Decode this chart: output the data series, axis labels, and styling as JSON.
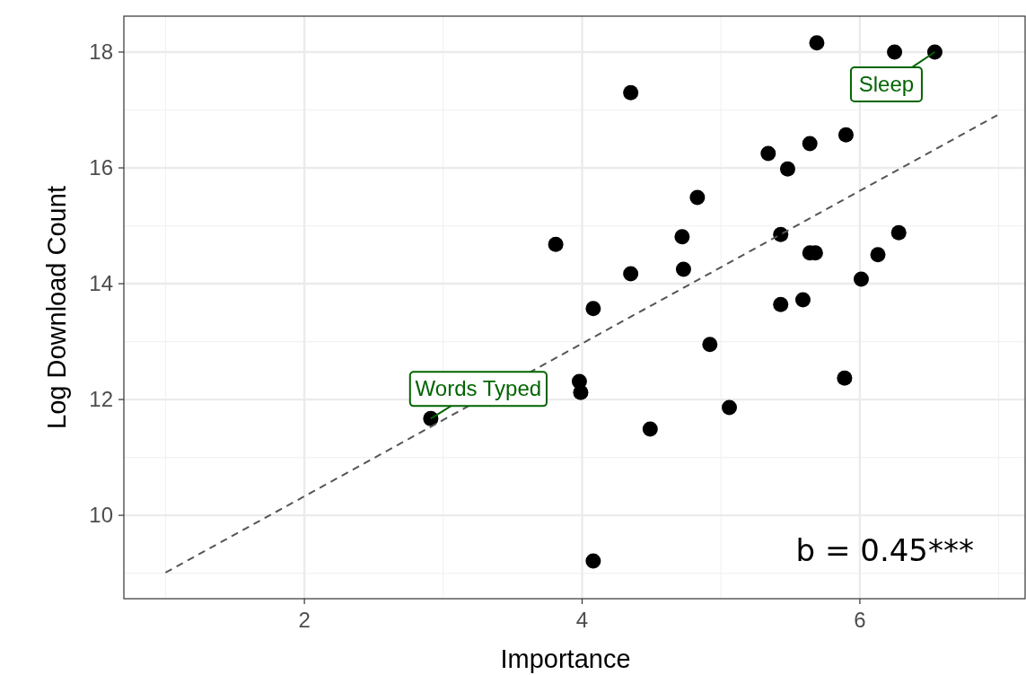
{
  "chart_data": {
    "type": "scatter",
    "xlabel": "Importance",
    "ylabel": "Log Download Count",
    "xlim": [
      0.7,
      7.19
    ],
    "ylim": [
      8.56,
      18.62
    ],
    "xticks": [
      2,
      4,
      6
    ],
    "yticks": [
      10,
      12,
      14,
      16,
      18
    ],
    "grid": true,
    "series": [
      {
        "marker": "circle",
        "color": "#000000",
        "x": [
          5.69,
          6.25,
          6.54,
          4.35,
          5.9,
          5.34,
          5.64,
          5.48,
          4.83,
          3.81,
          4.72,
          5.43,
          6.13,
          6.28,
          5.64,
          5.68,
          4.73,
          4.35,
          6.01,
          4.08,
          5.43,
          5.59,
          4.92,
          3.98,
          3.99,
          5.89,
          2.91,
          5.06,
          4.49,
          4.08
        ],
        "values": [
          18.16,
          18.0,
          18.0,
          17.3,
          16.57,
          16.25,
          16.42,
          15.98,
          15.49,
          14.68,
          14.81,
          14.85,
          14.5,
          14.88,
          14.53,
          14.53,
          14.25,
          14.17,
          14.08,
          13.57,
          13.64,
          13.72,
          12.95,
          12.31,
          12.12,
          12.37,
          11.67,
          11.86,
          11.49,
          9.21
        ]
      },
      {
        "type": "line",
        "color": "#555555",
        "line_style": "dashed",
        "x": [
          1,
          6.99
        ],
        "values": [
          9.01,
          16.91
        ]
      }
    ],
    "annotations": [
      {
        "text": "Sleep",
        "x": 6.54,
        "y": 18.0
      },
      {
        "text": "Words Typed",
        "x": 2.91,
        "y": 11.67
      },
      "b = 0.45***"
    ]
  }
}
